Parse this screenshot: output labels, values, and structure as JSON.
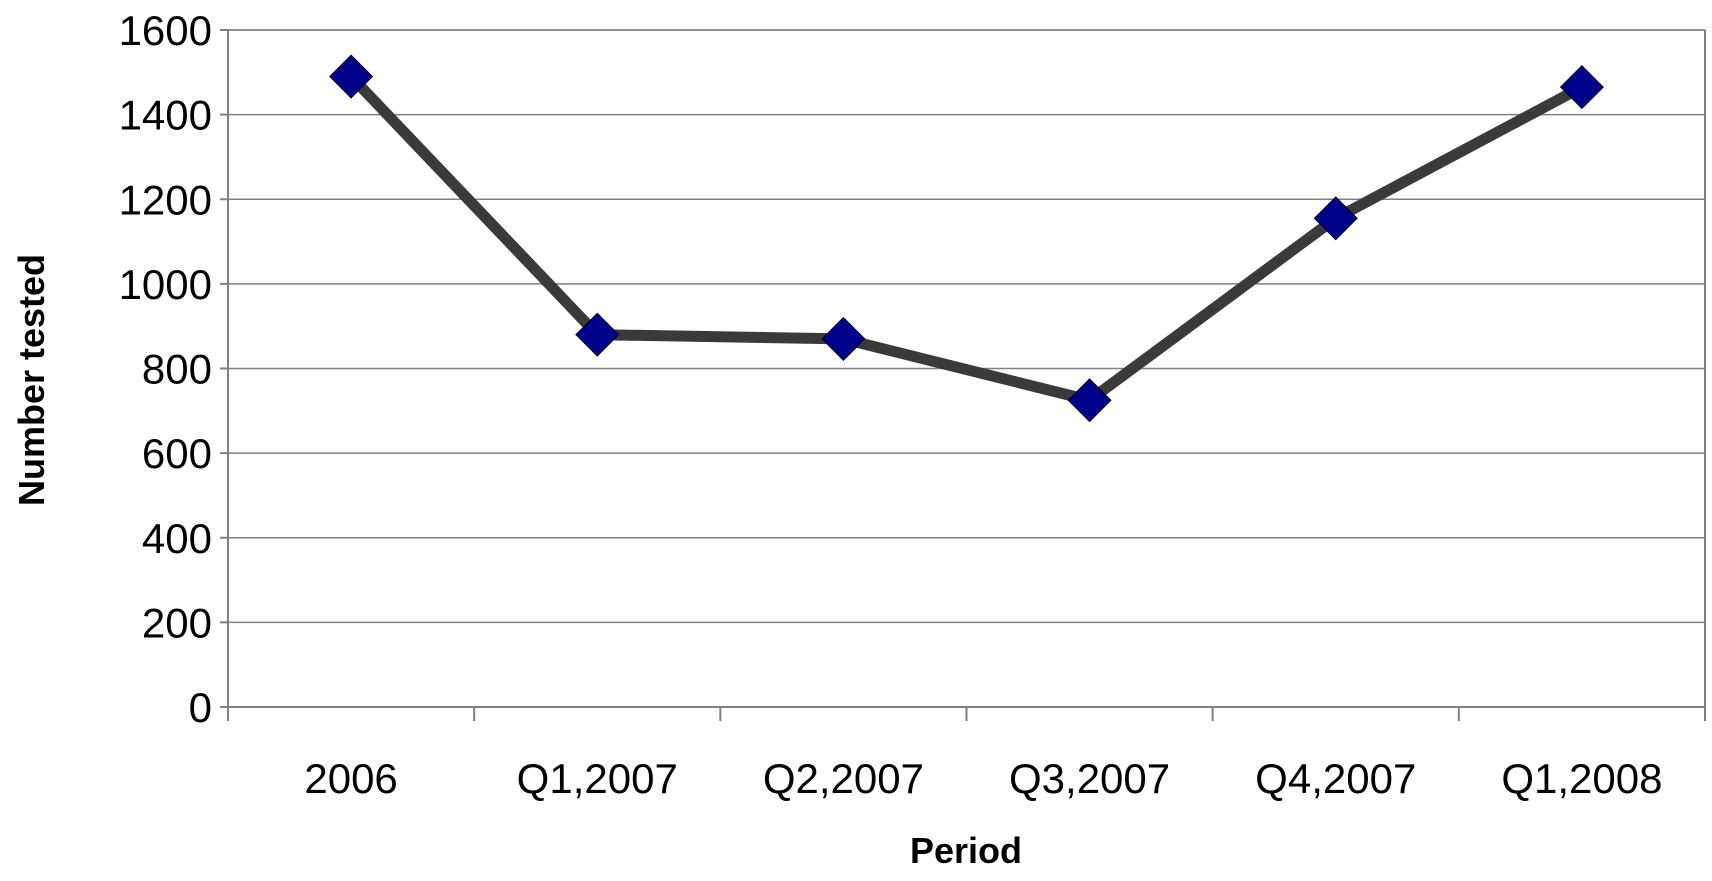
{
  "chart_data": {
    "type": "line",
    "title": "",
    "xlabel": "Period",
    "ylabel": "Number tested",
    "categories": [
      "2006",
      "Q1,2007",
      "Q2,2007",
      "Q3,2007",
      "Q4,2007",
      "Q1,2008"
    ],
    "series": [
      {
        "values": [
          1490,
          880,
          870,
          725,
          1155,
          1465
        ]
      }
    ],
    "ylim": [
      0,
      1600
    ],
    "yticks": [
      "0",
      "200",
      "400",
      "600",
      "800",
      "1000",
      "1200",
      "1400",
      "1600"
    ],
    "grid": true,
    "legend": "none",
    "colors": {
      "line": "#3a3a3a",
      "marker": "#00008b",
      "grid": "#808080"
    }
  }
}
